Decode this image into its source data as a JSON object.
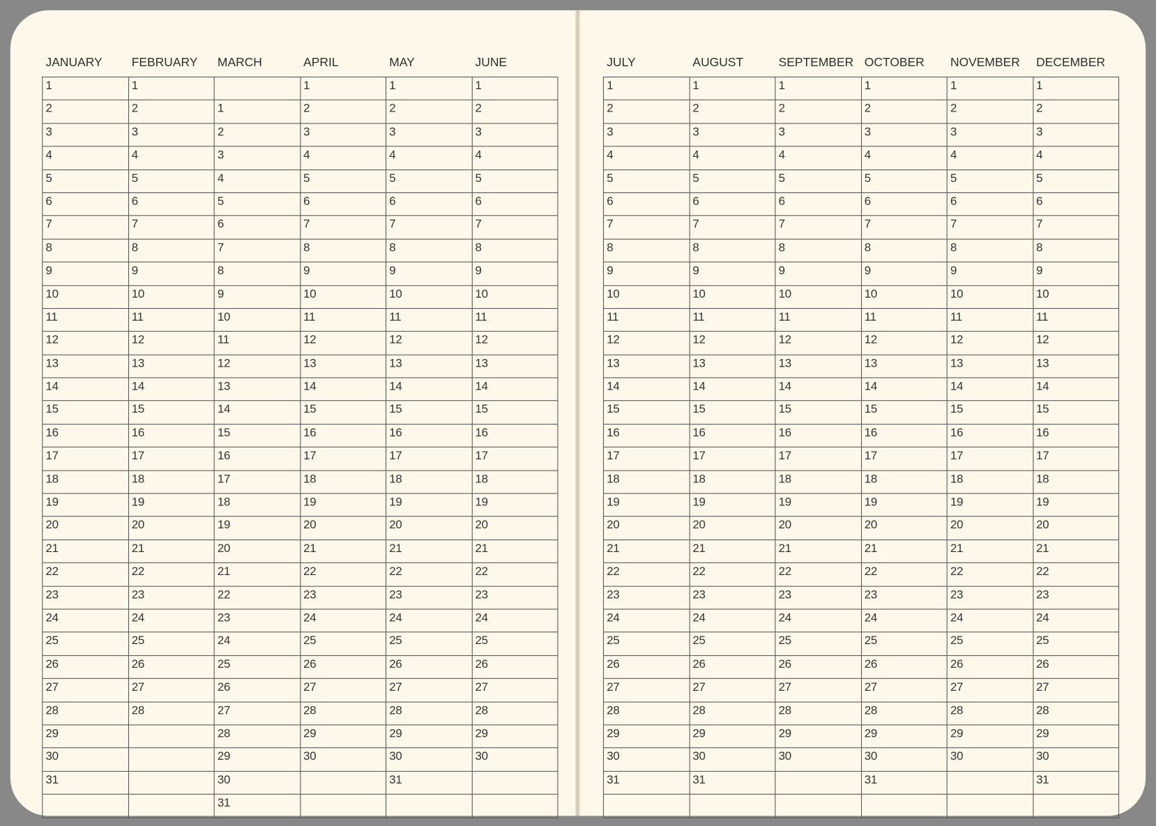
{
  "colors": {
    "frame": "#888888",
    "paper": "#fdf8ea",
    "grid": "#555555",
    "text": "#333333"
  },
  "pages": [
    {
      "months": [
        {
          "name": "JANUARY",
          "cells": [
            1,
            2,
            3,
            4,
            5,
            6,
            7,
            8,
            9,
            10,
            11,
            12,
            13,
            14,
            15,
            16,
            17,
            18,
            19,
            20,
            21,
            22,
            23,
            24,
            25,
            26,
            27,
            28,
            29,
            30,
            31,
            null
          ]
        },
        {
          "name": "FEBRUARY",
          "cells": [
            1,
            2,
            3,
            4,
            5,
            6,
            7,
            8,
            9,
            10,
            11,
            12,
            13,
            14,
            15,
            16,
            17,
            18,
            19,
            20,
            21,
            22,
            23,
            24,
            25,
            26,
            27,
            28,
            null,
            null,
            null,
            null
          ]
        },
        {
          "name": "MARCH",
          "cells": [
            null,
            1,
            2,
            3,
            4,
            5,
            6,
            7,
            8,
            9,
            10,
            11,
            12,
            13,
            14,
            15,
            16,
            17,
            18,
            19,
            20,
            21,
            22,
            23,
            24,
            25,
            26,
            27,
            28,
            29,
            30,
            31
          ]
        },
        {
          "name": "APRIL",
          "cells": [
            1,
            2,
            3,
            4,
            5,
            6,
            7,
            8,
            9,
            10,
            11,
            12,
            13,
            14,
            15,
            16,
            17,
            18,
            19,
            20,
            21,
            22,
            23,
            24,
            25,
            26,
            27,
            28,
            29,
            30,
            null,
            null
          ]
        },
        {
          "name": "MAY",
          "cells": [
            1,
            2,
            3,
            4,
            5,
            6,
            7,
            8,
            9,
            10,
            11,
            12,
            13,
            14,
            15,
            16,
            17,
            18,
            19,
            20,
            21,
            22,
            23,
            24,
            25,
            26,
            27,
            28,
            29,
            30,
            31,
            null
          ]
        },
        {
          "name": "JUNE",
          "cells": [
            1,
            2,
            3,
            4,
            5,
            6,
            7,
            8,
            9,
            10,
            11,
            12,
            13,
            14,
            15,
            16,
            17,
            18,
            19,
            20,
            21,
            22,
            23,
            24,
            25,
            26,
            27,
            28,
            29,
            30,
            null,
            null
          ]
        }
      ]
    },
    {
      "months": [
        {
          "name": "JULY",
          "cells": [
            1,
            2,
            3,
            4,
            5,
            6,
            7,
            8,
            9,
            10,
            11,
            12,
            13,
            14,
            15,
            16,
            17,
            18,
            19,
            20,
            21,
            22,
            23,
            24,
            25,
            26,
            27,
            28,
            29,
            30,
            31,
            null
          ]
        },
        {
          "name": "AUGUST",
          "cells": [
            1,
            2,
            3,
            4,
            5,
            6,
            7,
            8,
            9,
            10,
            11,
            12,
            13,
            14,
            15,
            16,
            17,
            18,
            19,
            20,
            21,
            22,
            23,
            24,
            25,
            26,
            27,
            28,
            29,
            30,
            31,
            null
          ]
        },
        {
          "name": "SEPTEMBER",
          "cells": [
            1,
            2,
            3,
            4,
            5,
            6,
            7,
            8,
            9,
            10,
            11,
            12,
            13,
            14,
            15,
            16,
            17,
            18,
            19,
            20,
            21,
            22,
            23,
            24,
            25,
            26,
            27,
            28,
            29,
            30,
            null,
            null
          ]
        },
        {
          "name": "OCTOBER",
          "cells": [
            1,
            2,
            3,
            4,
            5,
            6,
            7,
            8,
            9,
            10,
            11,
            12,
            13,
            14,
            15,
            16,
            17,
            18,
            19,
            20,
            21,
            22,
            23,
            24,
            25,
            26,
            27,
            28,
            29,
            30,
            31,
            null
          ]
        },
        {
          "name": "NOVEMBER",
          "cells": [
            1,
            2,
            3,
            4,
            5,
            6,
            7,
            8,
            9,
            10,
            11,
            12,
            13,
            14,
            15,
            16,
            17,
            18,
            19,
            20,
            21,
            22,
            23,
            24,
            25,
            26,
            27,
            28,
            29,
            30,
            null,
            null
          ]
        },
        {
          "name": "DECEMBER",
          "cells": [
            1,
            2,
            3,
            4,
            5,
            6,
            7,
            8,
            9,
            10,
            11,
            12,
            13,
            14,
            15,
            16,
            17,
            18,
            19,
            20,
            21,
            22,
            23,
            24,
            25,
            26,
            27,
            28,
            29,
            30,
            31,
            null
          ]
        }
      ]
    }
  ]
}
